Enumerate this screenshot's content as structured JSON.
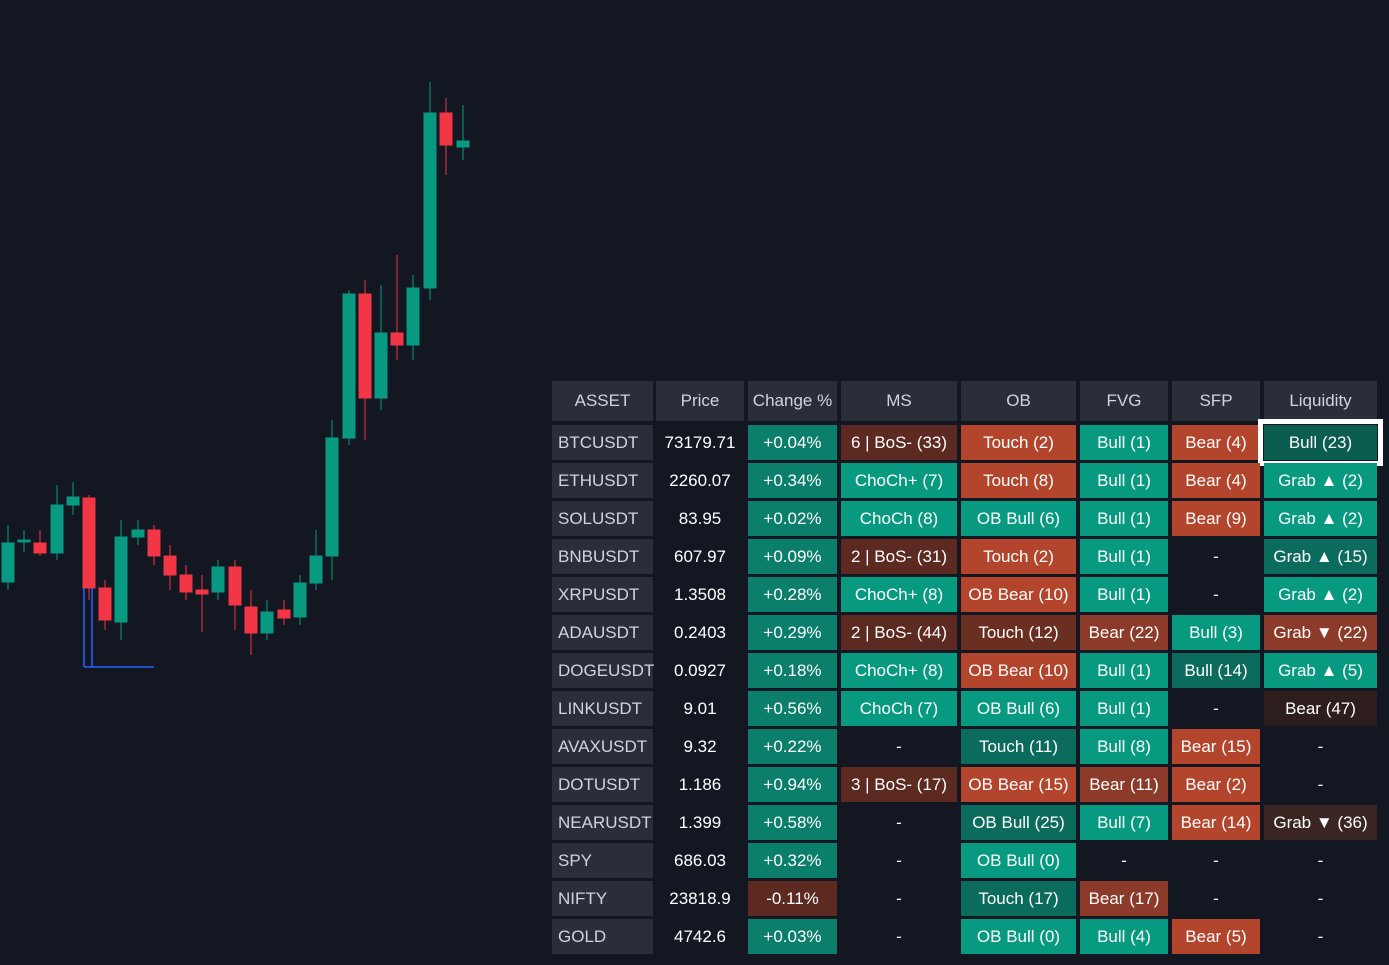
{
  "table": {
    "header": [
      "ASSET",
      "Price",
      "Change %",
      "MS",
      "OB",
      "FVG",
      "SFP",
      "Liquidity"
    ],
    "rows": [
      [
        "BTCUSDT",
        "73179.71",
        "+0.04%",
        "6 | BoS- (33)",
        "Touch (2)",
        "Bull (1)",
        "Bear (4)",
        "Bull (23)"
      ],
      [
        "ETHUSDT",
        "2260.07",
        "+0.34%",
        "ChoCh+ (7)",
        "Touch (8)",
        "Bull (1)",
        "Bear (4)",
        "Grab ▲ (2)"
      ],
      [
        "SOLUSDT",
        "83.95",
        "+0.02%",
        "ChoCh (8)",
        "OB Bull (6)",
        "Bull (1)",
        "Bear (9)",
        "Grab ▲ (2)"
      ],
      [
        "BNBUSDT",
        "607.97",
        "+0.09%",
        "2 | BoS- (31)",
        "Touch (2)",
        "Bull (1)",
        "-",
        "Grab ▲ (15)"
      ],
      [
        "XRPUSDT",
        "1.3508",
        "+0.28%",
        "ChoCh+ (8)",
        "OB Bear (10)",
        "Bull (1)",
        "-",
        "Grab ▲ (2)"
      ],
      [
        "ADAUSDT",
        "0.2403",
        "+0.29%",
        "2 | BoS- (44)",
        "Touch (12)",
        "Bear (22)",
        "Bull (3)",
        "Grab ▼ (22)"
      ],
      [
        "DOGEUSDT",
        "0.0927",
        "+0.18%",
        "ChoCh+ (8)",
        "OB Bear (10)",
        "Bull (1)",
        "Bull (14)",
        "Grab ▲ (5)"
      ],
      [
        "LINKUSDT",
        "9.01",
        "+0.56%",
        "ChoCh (7)",
        "OB Bull (6)",
        "Bull (1)",
        "-",
        "Bear (47)"
      ],
      [
        "AVAXUSDT",
        "9.32",
        "+0.22%",
        "-",
        "Touch (11)",
        "Bull (8)",
        "Bear (15)",
        "-"
      ],
      [
        "DOTUSDT",
        "1.186",
        "+0.94%",
        "3 | BoS- (17)",
        "OB Bear (15)",
        "Bear (11)",
        "Bear (2)",
        "-"
      ],
      [
        "NEARUSDT",
        "1.399",
        "+0.58%",
        "-",
        "OB Bull (25)",
        "Bull (7)",
        "Bear (14)",
        "Grab ▼ (36)"
      ],
      [
        "SPY",
        "686.03",
        "+0.32%",
        "-",
        "OB Bull (0)",
        "-",
        "-",
        "-"
      ],
      [
        "NIFTY",
        "23818.9",
        "-0.11%",
        "-",
        "Touch (17)",
        "Bear (17)",
        "-",
        "-"
      ],
      [
        "GOLD",
        "4742.6",
        "+0.03%",
        "-",
        "OB Bull (0)",
        "Bull (4)",
        "Bear (5)",
        "-"
      ]
    ],
    "cell_colors": [
      [
        "#2a2e39",
        "#131722",
        "#0b7f6b",
        "#5d2a22",
        "#b2452c",
        "#089981",
        "#b2452c",
        "#0b5d50"
      ],
      [
        "#2a2e39",
        "#131722",
        "#0b7f6b",
        "#089981",
        "#b2452c",
        "#089981",
        "#b2452c",
        "#089981"
      ],
      [
        "#2a2e39",
        "#131722",
        "#0b7f6b",
        "#089981",
        "#089981",
        "#089981",
        "#b2452c",
        "#089981"
      ],
      [
        "#2a2e39",
        "#131722",
        "#0b7f6b",
        "#5d2a22",
        "#b2452c",
        "#089981",
        "#131722",
        "#0b6b5c"
      ],
      [
        "#2a2e39",
        "#131722",
        "#0b7f6b",
        "#089981",
        "#b2452c",
        "#089981",
        "#131722",
        "#089981"
      ],
      [
        "#2a2e39",
        "#131722",
        "#0b7f6b",
        "#5d2a22",
        "#6b2f22",
        "#8c3a2a",
        "#089981",
        "#8c3a2a"
      ],
      [
        "#2a2e39",
        "#131722",
        "#0b7f6b",
        "#089981",
        "#b2452c",
        "#089981",
        "#0b6b5c",
        "#089981"
      ],
      [
        "#2a2e39",
        "#131722",
        "#0b7f6b",
        "#089981",
        "#089981",
        "#089981",
        "#131722",
        "#2e1d1d"
      ],
      [
        "#2a2e39",
        "#131722",
        "#0b7f6b",
        "#131722",
        "#0b6b5c",
        "#089981",
        "#b2452c",
        "#131722"
      ],
      [
        "#2a2e39",
        "#131722",
        "#0b7f6b",
        "#5d2a22",
        "#b2452c",
        "#8c3a2a",
        "#b2452c",
        "#131722"
      ],
      [
        "#2a2e39",
        "#131722",
        "#0b7f6b",
        "#131722",
        "#0b6b5c",
        "#089981",
        "#b2452c",
        "#3a2522"
      ],
      [
        "#2a2e39",
        "#131722",
        "#0b7f6b",
        "#131722",
        "#089981",
        "#131722",
        "#131722",
        "#131722"
      ],
      [
        "#2a2e39",
        "#131722",
        "#5d2a22",
        "#131722",
        "#0b6b5c",
        "#8c3a2a",
        "#131722",
        "#131722"
      ],
      [
        "#2a2e39",
        "#131722",
        "#0b7f6b",
        "#131722",
        "#089981",
        "#089981",
        "#b2452c",
        "#131722"
      ]
    ],
    "header_color": "#2a2e39"
  }
}
